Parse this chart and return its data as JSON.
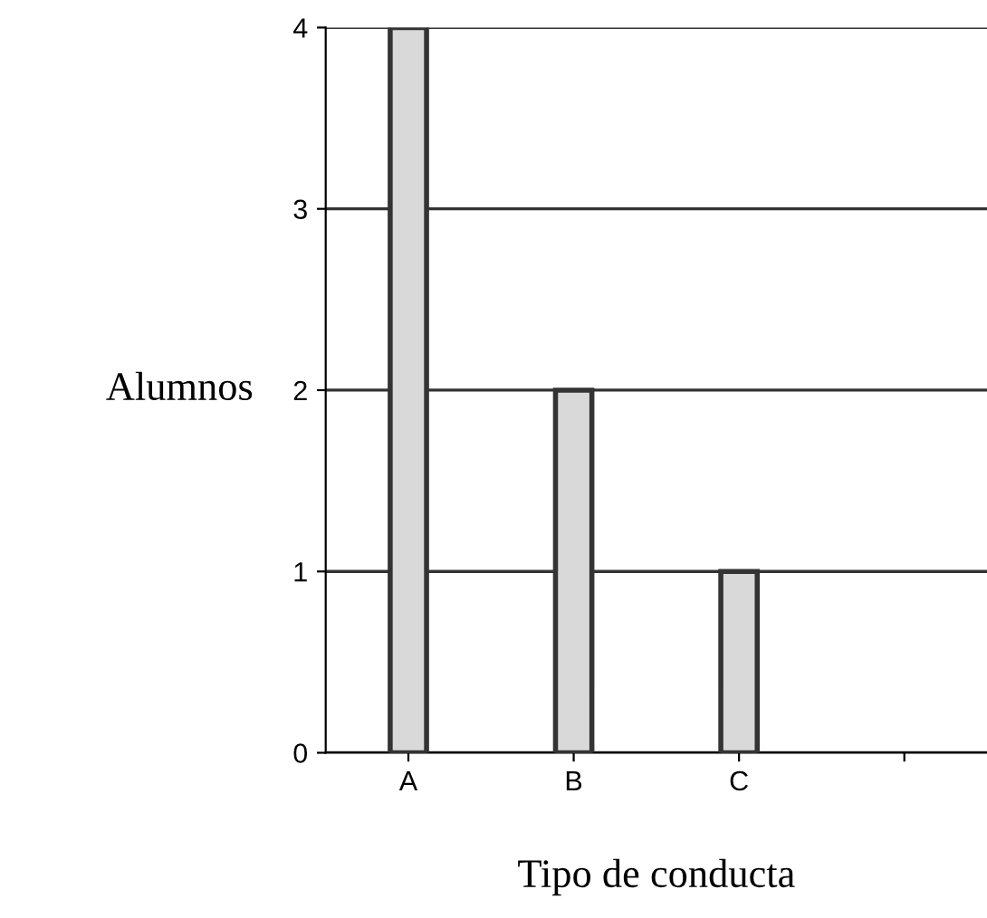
{
  "chart_data": {
    "type": "bar",
    "xlabel": "Tipo de conducta",
    "ylabel": "Alumnos",
    "categories": [
      "A",
      "B",
      "C",
      null
    ],
    "values": [
      4,
      2,
      1,
      null
    ],
    "color": "#d9d9d9",
    "ylim": [
      0,
      4
    ],
    "yticks": [
      0,
      1,
      2,
      3,
      4
    ],
    "grid": "y",
    "legend": false
  }
}
